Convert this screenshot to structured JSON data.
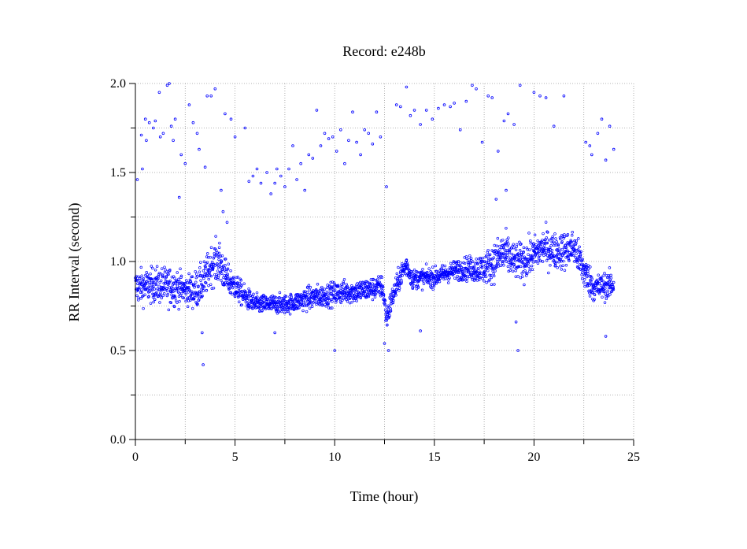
{
  "chart_data": {
    "type": "scatter",
    "title": "Record:  e248b",
    "xlabel": "Time (hour)",
    "ylabel": "RR Interval (second)",
    "xlim": [
      0,
      25
    ],
    "ylim": [
      0.0,
      2.0
    ],
    "xticks": [
      "0",
      "5",
      "10",
      "15",
      "20",
      "25"
    ],
    "yticks": [
      "0.0",
      "0.5",
      "1.0",
      "1.5",
      "2.0"
    ],
    "grid": true,
    "marker_color": "#0000ff",
    "series": [
      {
        "band": [
          [
            0.0,
            0.86,
            0.09
          ],
          [
            0.5,
            0.86,
            0.09
          ],
          [
            1.0,
            0.87,
            0.09
          ],
          [
            1.5,
            0.86,
            0.1
          ],
          [
            2.0,
            0.86,
            0.1
          ],
          [
            2.5,
            0.84,
            0.07
          ],
          [
            3.0,
            0.84,
            0.1
          ],
          [
            3.4,
            0.88,
            0.1
          ],
          [
            3.8,
            0.98,
            0.1
          ],
          [
            4.2,
            1.0,
            0.12
          ],
          [
            4.6,
            0.9,
            0.08
          ],
          [
            5.0,
            0.86,
            0.07
          ],
          [
            5.5,
            0.8,
            0.06
          ],
          [
            6.0,
            0.76,
            0.05
          ],
          [
            6.5,
            0.76,
            0.05
          ],
          [
            7.0,
            0.76,
            0.05
          ],
          [
            7.5,
            0.76,
            0.05
          ],
          [
            8.0,
            0.77,
            0.05
          ],
          [
            8.5,
            0.79,
            0.06
          ],
          [
            9.0,
            0.8,
            0.06
          ],
          [
            9.5,
            0.81,
            0.06
          ],
          [
            10.0,
            0.82,
            0.06
          ],
          [
            10.5,
            0.83,
            0.06
          ],
          [
            11.0,
            0.83,
            0.06
          ],
          [
            11.5,
            0.84,
            0.06
          ],
          [
            12.0,
            0.85,
            0.06
          ],
          [
            12.4,
            0.86,
            0.06
          ],
          [
            12.6,
            0.68,
            0.07
          ],
          [
            12.9,
            0.8,
            0.06
          ],
          [
            13.3,
            0.92,
            0.06
          ],
          [
            13.6,
            0.98,
            0.06
          ],
          [
            13.9,
            0.9,
            0.05
          ],
          [
            14.5,
            0.91,
            0.05
          ],
          [
            15.0,
            0.91,
            0.05
          ],
          [
            15.5,
            0.93,
            0.05
          ],
          [
            16.0,
            0.95,
            0.05
          ],
          [
            16.5,
            0.96,
            0.06
          ],
          [
            17.0,
            0.96,
            0.07
          ],
          [
            17.5,
            0.96,
            0.08
          ],
          [
            18.0,
            1.0,
            0.1
          ],
          [
            18.5,
            1.05,
            0.12
          ],
          [
            19.0,
            1.0,
            0.09
          ],
          [
            19.5,
            1.0,
            0.1
          ],
          [
            20.0,
            1.04,
            0.09
          ],
          [
            20.5,
            1.08,
            0.1
          ],
          [
            21.0,
            1.06,
            0.09
          ],
          [
            21.5,
            1.06,
            0.1
          ],
          [
            22.0,
            1.08,
            0.09
          ],
          [
            22.5,
            0.95,
            0.1
          ],
          [
            23.0,
            0.85,
            0.07
          ],
          [
            23.5,
            0.86,
            0.07
          ],
          [
            24.0,
            0.87,
            0.07
          ]
        ],
        "outliers": [
          [
            0.1,
            1.46
          ],
          [
            0.3,
            1.71
          ],
          [
            0.35,
            1.52
          ],
          [
            0.5,
            1.8
          ],
          [
            0.55,
            1.68
          ],
          [
            0.7,
            1.78
          ],
          [
            0.9,
            1.75
          ],
          [
            1.0,
            1.79
          ],
          [
            1.2,
            1.95
          ],
          [
            1.25,
            1.7
          ],
          [
            1.4,
            1.72
          ],
          [
            1.6,
            1.99
          ],
          [
            1.7,
            2.0
          ],
          [
            1.8,
            1.76
          ],
          [
            1.9,
            1.68
          ],
          [
            2.0,
            1.8
          ],
          [
            2.2,
            1.36
          ],
          [
            2.3,
            1.6
          ],
          [
            2.5,
            1.55
          ],
          [
            2.7,
            1.88
          ],
          [
            2.9,
            1.78
          ],
          [
            3.1,
            1.72
          ],
          [
            3.2,
            1.63
          ],
          [
            3.5,
            1.53
          ],
          [
            3.6,
            1.93
          ],
          [
            3.8,
            1.93
          ],
          [
            4.0,
            1.97
          ],
          [
            4.3,
            1.4
          ],
          [
            4.5,
            1.83
          ],
          [
            4.8,
            1.8
          ],
          [
            5.0,
            1.7
          ],
          [
            5.5,
            1.75
          ],
          [
            5.7,
            1.45
          ],
          [
            5.9,
            1.48
          ],
          [
            6.1,
            1.52
          ],
          [
            6.3,
            1.44
          ],
          [
            6.6,
            1.5
          ],
          [
            6.8,
            1.38
          ],
          [
            7.0,
            1.44
          ],
          [
            7.1,
            1.52
          ],
          [
            7.3,
            1.48
          ],
          [
            7.5,
            1.42
          ],
          [
            7.7,
            1.52
          ],
          [
            7.9,
            1.65
          ],
          [
            8.1,
            1.46
          ],
          [
            8.3,
            1.55
          ],
          [
            8.5,
            1.4
          ],
          [
            8.7,
            1.6
          ],
          [
            8.9,
            1.58
          ],
          [
            9.1,
            1.85
          ],
          [
            9.3,
            1.65
          ],
          [
            9.5,
            1.72
          ],
          [
            9.7,
            1.69
          ],
          [
            9.9,
            1.7
          ],
          [
            10.1,
            1.62
          ],
          [
            10.3,
            1.74
          ],
          [
            10.5,
            1.55
          ],
          [
            10.7,
            1.68
          ],
          [
            10.9,
            1.84
          ],
          [
            11.1,
            1.67
          ],
          [
            11.3,
            1.6
          ],
          [
            11.5,
            1.74
          ],
          [
            11.7,
            1.72
          ],
          [
            11.9,
            1.66
          ],
          [
            12.1,
            1.84
          ],
          [
            12.3,
            1.7
          ],
          [
            12.6,
            1.42
          ],
          [
            13.1,
            1.88
          ],
          [
            13.3,
            1.87
          ],
          [
            13.6,
            1.98
          ],
          [
            13.8,
            1.82
          ],
          [
            14.0,
            1.85
          ],
          [
            14.3,
            1.77
          ],
          [
            14.6,
            1.85
          ],
          [
            14.9,
            1.8
          ],
          [
            15.2,
            1.86
          ],
          [
            15.5,
            1.88
          ],
          [
            15.8,
            1.87
          ],
          [
            16.0,
            1.89
          ],
          [
            16.3,
            1.74
          ],
          [
            16.6,
            1.9
          ],
          [
            16.9,
            1.99
          ],
          [
            17.1,
            1.97
          ],
          [
            17.4,
            1.67
          ],
          [
            17.7,
            1.93
          ],
          [
            17.9,
            1.92
          ],
          [
            18.2,
            1.62
          ],
          [
            18.5,
            1.79
          ],
          [
            18.7,
            1.83
          ],
          [
            19.0,
            1.77
          ],
          [
            19.3,
            1.99
          ],
          [
            20.0,
            1.95
          ],
          [
            20.3,
            1.93
          ],
          [
            20.6,
            1.92
          ],
          [
            21.0,
            1.76
          ],
          [
            21.5,
            1.93
          ],
          [
            22.6,
            1.67
          ],
          [
            22.8,
            1.65
          ],
          [
            22.9,
            1.6
          ],
          [
            23.2,
            1.72
          ],
          [
            23.4,
            1.8
          ],
          [
            23.6,
            1.57
          ],
          [
            23.8,
            1.76
          ],
          [
            24.0,
            1.63
          ],
          [
            3.4,
            0.42
          ],
          [
            3.35,
            0.6
          ],
          [
            7.0,
            0.6
          ],
          [
            10.0,
            0.5
          ],
          [
            12.5,
            0.54
          ],
          [
            12.7,
            0.5
          ],
          [
            14.3,
            0.61
          ],
          [
            19.2,
            0.5
          ],
          [
            19.1,
            0.66
          ],
          [
            23.6,
            0.58
          ],
          [
            4.4,
            1.28
          ],
          [
            4.6,
            1.22
          ],
          [
            18.1,
            1.35
          ],
          [
            18.6,
            1.4
          ]
        ]
      }
    ]
  }
}
